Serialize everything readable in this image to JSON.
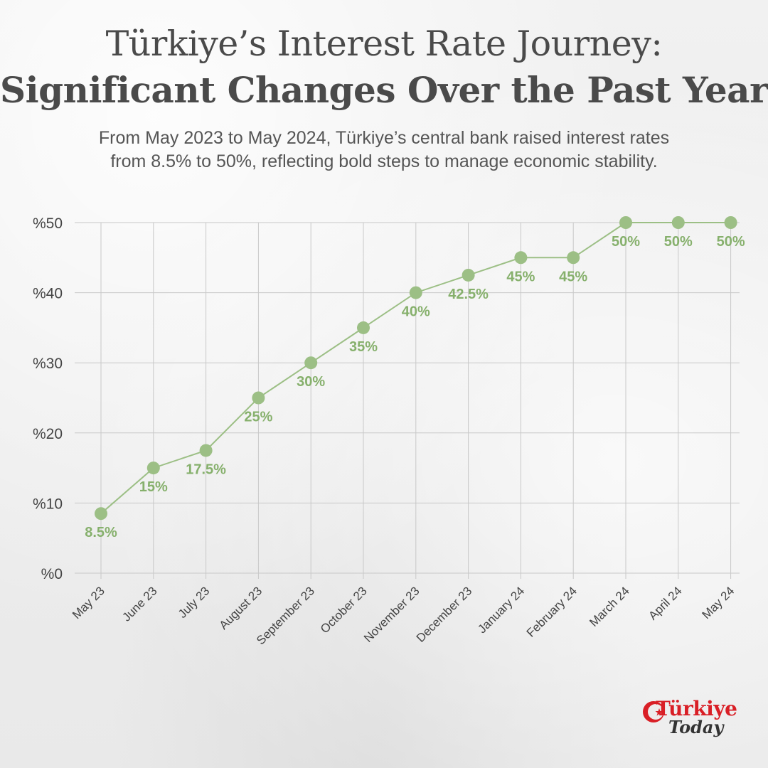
{
  "header": {
    "title_line1": "Türkiye’s Interest Rate Journey:",
    "title_line2": "Significant Changes Over the Past Year",
    "subtitle_line1": "From May 2023 to May 2024, Türkiye’s central bank raised interest rates",
    "subtitle_line2": "from 8.5% to 50%, reflecting bold steps to manage economic stability."
  },
  "logo": {
    "word": "Türkiye",
    "sub": "Today"
  },
  "colors": {
    "series": "#9cbf85",
    "label": "#86b06c",
    "grid": "#c8c8c8",
    "axis_text": "#444444",
    "logo_red": "#d91f26"
  },
  "chart_data": {
    "type": "line",
    "categories": [
      "May 23",
      "June 23",
      "July 23",
      "August 23",
      "September 23",
      "October 23",
      "November 23",
      "December 23",
      "January 24",
      "February 24",
      "March 24",
      "April 24",
      "May 24"
    ],
    "values": [
      8.5,
      15,
      17.5,
      25,
      30,
      35,
      40,
      42.5,
      45,
      45,
      50,
      50,
      50
    ],
    "data_labels": [
      "8.5%",
      "15%",
      "17.5%",
      "25%",
      "30%",
      "35%",
      "40%",
      "42.5%",
      "45%",
      "45%",
      "50%",
      "50%",
      "50%"
    ],
    "yticks": [
      0,
      10,
      20,
      30,
      40,
      50
    ],
    "ytick_labels": [
      "%0",
      "%10",
      "%20",
      "%30",
      "%40",
      "%50"
    ],
    "ylim": [
      0,
      50
    ],
    "grid": true
  }
}
